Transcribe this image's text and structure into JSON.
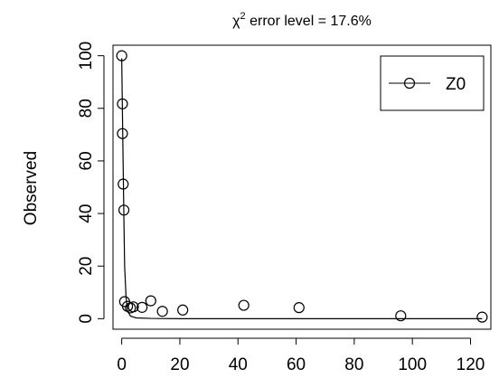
{
  "chart_data": {
    "type": "scatter",
    "title_prefix": "χ",
    "title_sup": "2",
    "title_rest": " error level = 17.6%",
    "xlabel": "",
    "ylabel": "Observed",
    "xlim": [
      -3,
      127
    ],
    "ylim": [
      -4,
      104
    ],
    "xticks": [
      0,
      20,
      40,
      60,
      80,
      100,
      120
    ],
    "yticks": [
      0,
      20,
      40,
      60,
      80,
      100
    ],
    "legend": {
      "position": "top-right",
      "entries": [
        "Z0"
      ]
    },
    "series": [
      {
        "name": "Z0",
        "points": [
          [
            0,
            100
          ],
          [
            0.25,
            81.7
          ],
          [
            0.25,
            70.4
          ],
          [
            0.5,
            51.2
          ],
          [
            0.75,
            41.3
          ],
          [
            1,
            6.5
          ],
          [
            2,
            4.7
          ],
          [
            3,
            4.1
          ],
          [
            4,
            4.5
          ],
          [
            7,
            4.3
          ],
          [
            10,
            6.8
          ],
          [
            14,
            2.8
          ],
          [
            21,
            3.3
          ],
          [
            42,
            5.1
          ],
          [
            61,
            4.2
          ],
          [
            96,
            1.1
          ],
          [
            124,
            0.6
          ]
        ],
        "fit": [
          [
            0,
            99
          ],
          [
            0.25,
            78
          ],
          [
            0.5,
            58
          ],
          [
            0.75,
            38
          ],
          [
            1,
            20
          ],
          [
            1.5,
            8
          ],
          [
            2,
            3
          ],
          [
            3,
            1
          ],
          [
            5,
            0.3
          ],
          [
            10,
            0.1
          ],
          [
            20,
            0
          ],
          [
            40,
            0
          ],
          [
            60,
            0
          ],
          [
            80,
            0
          ],
          [
            100,
            0
          ],
          [
            124,
            0
          ]
        ]
      }
    ]
  }
}
